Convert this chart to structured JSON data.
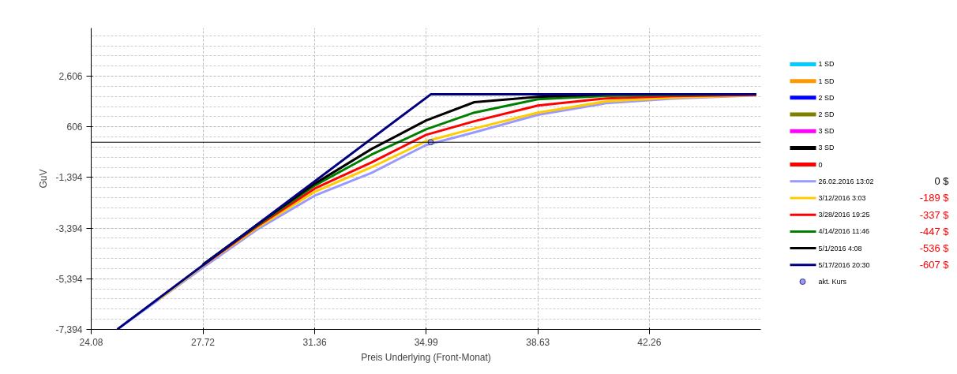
{
  "chart_data": {
    "type": "line",
    "xlabel": "Preis Underlying (Front-Monat)",
    "ylabel": "GuV",
    "xlim": [
      24.08,
      45.89
    ],
    "xticks": [
      24.08,
      27.72,
      31.36,
      34.99,
      38.63,
      42.26
    ],
    "ylim": [
      -7394,
      4510
    ],
    "yticks": [
      {
        "value": -7394,
        "label": "-7,394"
      },
      {
        "value": -5394,
        "label": "-5,394"
      },
      {
        "value": -3394,
        "label": "-3,394"
      },
      {
        "value": -1394,
        "label": "-1,394"
      },
      {
        "value": 606,
        "label": "606"
      },
      {
        "value": 2606,
        "label": "2,606"
      }
    ],
    "grid": true,
    "legend": "right",
    "line_style": "solid",
    "marker": "none",
    "ref_lines": [
      {
        "axis": "y",
        "value": 0,
        "color": "#000000"
      }
    ],
    "annotations": [
      "0 $",
      "-189 $",
      "-337 $",
      "-447 $",
      "-536 $",
      "-607 $"
    ],
    "series": [
      {
        "name": "1 SD",
        "color": "#00ccff"
      },
      {
        "name": "1 SD",
        "color": "#ff9900"
      },
      {
        "name": "2 SD",
        "color": "#0000ff"
      },
      {
        "name": "2 SD",
        "color": "#808000"
      },
      {
        "name": "3 SD",
        "color": "#ff00ff"
      },
      {
        "name": "3 SD",
        "color": "#000000"
      },
      {
        "name": "0",
        "color": "#ff0000"
      },
      {
        "name": "26.02.2016 13:02",
        "color": "#9999ff",
        "x": [
          24.93,
          26.27,
          27.72,
          29.48,
          31.36,
          33.21,
          34.99,
          36.56,
          38.63,
          40.85,
          43.0,
          45.74
        ],
        "values": [
          -7390,
          -6230,
          -4950,
          -3450,
          -2110,
          -1210,
          -110,
          390,
          1080,
          1540,
          1720,
          1850
        ]
      },
      {
        "name": "3/12/2016 3:03",
        "color": "#ffcc00",
        "x": [
          26.27,
          27.72,
          29.48,
          31.36,
          33.21,
          34.99,
          36.56,
          38.63,
          40.85,
          43.0,
          45.74
        ],
        "values": [
          -6210,
          -4880,
          -3380,
          -1960,
          -990,
          40,
          540,
          1170,
          1610,
          1760,
          1860
        ]
      },
      {
        "name": "3/28/2016 19:25",
        "color": "#ff0000",
        "x": [
          27.72,
          29.48,
          31.36,
          33.21,
          34.99,
          36.56,
          38.63,
          40.85,
          43.0,
          45.74
        ],
        "values": [
          -4860,
          -3330,
          -1830,
          -800,
          290,
          830,
          1450,
          1730,
          1820,
          1870
        ]
      },
      {
        "name": "4/14/2016 11:46",
        "color": "#008000",
        "x": [
          27.72,
          29.48,
          31.36,
          33.21,
          34.99,
          36.56,
          38.63,
          40.85,
          43.0,
          45.74
        ],
        "values": [
          -4840,
          -3290,
          -1710,
          -490,
          510,
          1170,
          1700,
          1830,
          1870,
          1890
        ]
      },
      {
        "name": "5/1/2016 4:08",
        "color": "#000000",
        "x": [
          27.72,
          29.48,
          31.36,
          33.21,
          34.99,
          36.56,
          38.63,
          40.85,
          43.0,
          45.74
        ],
        "values": [
          -4830,
          -3260,
          -1640,
          -270,
          860,
          1580,
          1790,
          1890,
          1890,
          1890
        ]
      },
      {
        "name": "5/17/2016 20:30",
        "color": "#000080",
        "x": [
          24.93,
          35.14,
          45.74
        ],
        "values": [
          -7390,
          1890,
          1890
        ]
      },
      {
        "name": "akt. Kurs",
        "type": "scatter",
        "marker": "circle",
        "color": "#9999ff",
        "x": [
          35.14
        ],
        "values": [
          0
        ]
      }
    ]
  }
}
